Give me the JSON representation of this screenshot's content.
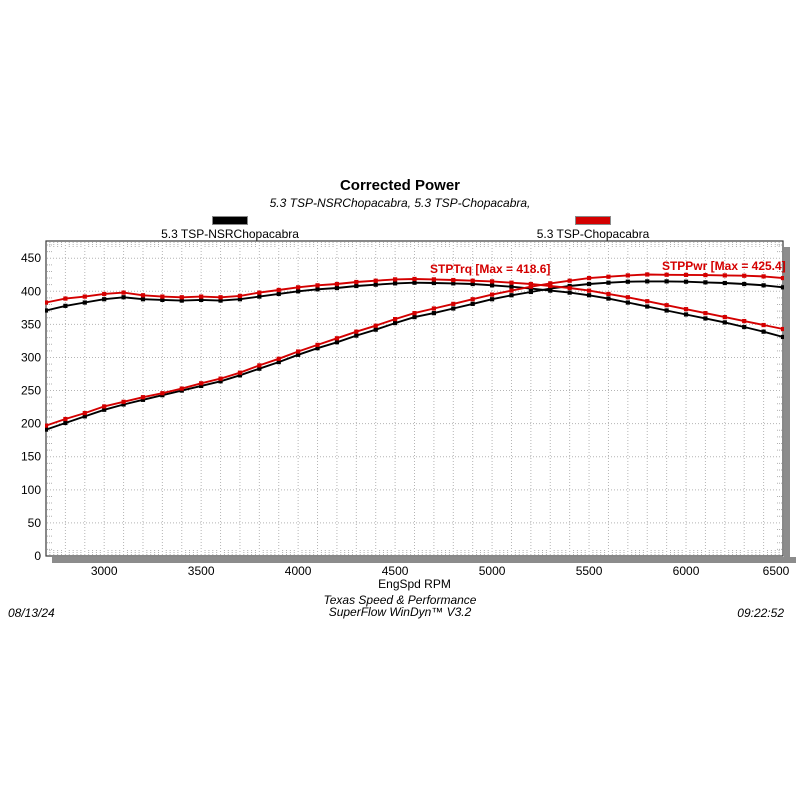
{
  "header": {
    "title": "Corrected Power",
    "subtitle": "5.3 TSP-NSRChopacabra, 5.3 TSP-Chopacabra,"
  },
  "legend": {
    "items": [
      {
        "label": "5.3 TSP-NSRChopacabra",
        "color": "#000000"
      },
      {
        "label": "5.3 TSP-Chopacabra",
        "color": "#d40000"
      }
    ]
  },
  "footer": {
    "date": "08/13/24",
    "center_line1": "Texas Speed & Performance",
    "center_line2": "SuperFlow WinDyn™ V3.2",
    "time": "09:22:52"
  },
  "chart_data": {
    "type": "line",
    "title": "Corrected Power",
    "subtitle": "5.3 TSP-NSRChopacabra, 5.3 TSP-Chopacabra,",
    "xlabel": "EngSpd RPM",
    "ylabel": "",
    "grid": true,
    "legend_position": "top",
    "xlim": [
      2700,
      6500
    ],
    "ylim": [
      0,
      476
    ],
    "x_ticks": [
      3000,
      3500,
      4000,
      4500,
      5000,
      5500,
      6000,
      6500
    ],
    "y_ticks": [
      0,
      50,
      100,
      150,
      200,
      250,
      300,
      350,
      400,
      450
    ],
    "x": [
      2700,
      2800,
      2900,
      3000,
      3100,
      3200,
      3300,
      3400,
      3500,
      3600,
      3700,
      3800,
      3900,
      4000,
      4100,
      4200,
      4300,
      4400,
      4500,
      4600,
      4700,
      4800,
      4900,
      5000,
      5100,
      5200,
      5300,
      5400,
      5500,
      5600,
      5700,
      5800,
      5900,
      6000,
      6100,
      6200,
      6300,
      6400,
      6500
    ],
    "series": [
      {
        "name": "5.3 TSP-NSRChopacabra STPTrq",
        "run": "5.3 TSP-NSRChopacabra",
        "channel": "STPTrq",
        "color": "#000000",
        "values": [
          371,
          378,
          383,
          388,
          391,
          388,
          387,
          386,
          387,
          386,
          388,
          392,
          396,
          400,
          403,
          405,
          408,
          410,
          412,
          413,
          412.5,
          412,
          411,
          409,
          407,
          404,
          401,
          398,
          394,
          389,
          383,
          377,
          371,
          365,
          359,
          353,
          346,
          339,
          331
        ]
      },
      {
        "name": "5.3 TSP-NSRChopacabra STPPwr",
        "run": "5.3 TSP-NSRChopacabra",
        "channel": "STPPwr",
        "color": "#000000",
        "values": [
          191,
          201,
          211,
          221,
          229,
          236,
          243,
          250,
          257,
          264,
          273,
          283,
          293,
          304,
          314,
          323,
          333,
          342,
          352,
          361,
          367,
          374,
          381,
          388,
          394,
          399,
          404,
          408,
          411,
          413,
          414.5,
          415,
          415,
          414.5,
          413.5,
          412.5,
          411,
          409,
          406
        ]
      },
      {
        "name": "5.3 TSP-Chopacabra STPTrq",
        "run": "5.3 TSP-Chopacabra",
        "channel": "STPTrq",
        "color": "#d40000",
        "values": [
          383,
          389,
          392,
          396,
          398,
          394,
          392,
          391,
          392,
          391,
          393,
          398,
          402,
          406,
          409,
          411,
          414,
          416,
          418,
          418.6,
          418,
          417,
          416,
          415,
          413,
          411,
          408,
          405,
          401,
          396,
          391,
          385,
          379,
          373,
          367,
          361,
          355,
          349,
          343
        ]
      },
      {
        "name": "5.3 TSP-Chopacabra STPPwr",
        "run": "5.3 TSP-Chopacabra",
        "channel": "STPPwr",
        "color": "#d40000",
        "values": [
          197,
          207,
          216,
          226,
          233,
          240,
          246,
          253,
          261,
          268,
          277,
          288,
          298,
          309,
          319,
          329,
          339,
          348,
          358,
          367,
          374,
          381,
          388,
          395,
          401,
          407,
          412,
          416,
          420,
          422,
          424,
          425.4,
          425,
          424.8,
          424.5,
          424,
          423.5,
          422.5,
          420
        ]
      }
    ],
    "annotations": [
      {
        "text": "STPTrq [Max = 418.6]",
        "x": 4680,
        "y": 428,
        "color": "#d40000"
      },
      {
        "text": "STPPwr [Max = 425.4]",
        "x": 5876,
        "y": 432,
        "color": "#d40000"
      }
    ]
  }
}
